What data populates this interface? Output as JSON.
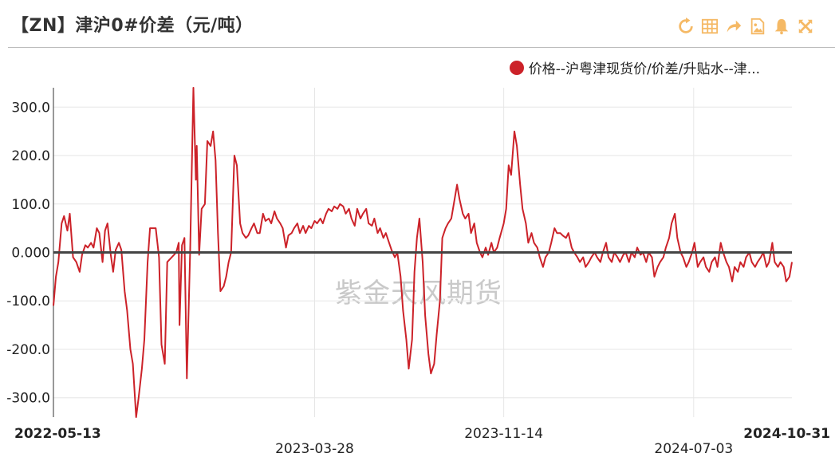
{
  "header": {
    "title": "【ZN】津沪0#价差（元/吨）"
  },
  "toolbar": [
    {
      "icon": "refresh-icon"
    },
    {
      "icon": "table-icon"
    },
    {
      "icon": "share-icon"
    },
    {
      "icon": "image-icon"
    },
    {
      "icon": "bell-icon"
    },
    {
      "icon": "fullscreen-icon"
    }
  ],
  "colors": {
    "series": "#cc2229",
    "toolbar": "#f5b965",
    "grid": "#e6e6e6",
    "zero": "#444444",
    "watermark": "#c9c9c9"
  },
  "watermark": "紫金天风期货",
  "chart_data": {
    "type": "line",
    "title": "【ZN】津沪0#价差（元/吨）",
    "ylim": [
      -340,
      340
    ],
    "yticks": [
      -300,
      -200,
      -100,
      0,
      100,
      200,
      300
    ],
    "ytick_labels": [
      "-300.0",
      "-200.0",
      "-100.0",
      "0.000",
      "100.0",
      "200.0",
      "300.0"
    ],
    "xlim": [
      "2022-05-13",
      "2024-10-31"
    ],
    "xticks": [
      {
        "date": "2022-05-13",
        "label": "2022-05-13",
        "row": 1,
        "bold": true
      },
      {
        "date": "2023-03-28",
        "label": "2023-03-28",
        "row": 2,
        "bold": false
      },
      {
        "date": "2023-11-14",
        "label": "2023-11-14",
        "row": 1,
        "bold": false
      },
      {
        "date": "2024-07-03",
        "label": "2024-07-03",
        "row": 2,
        "bold": false
      },
      {
        "date": "2024-10-31",
        "label": "2024-10-31",
        "row": 1,
        "bold": true
      }
    ],
    "grid": true,
    "legend": "top-right",
    "series": [
      {
        "name": "价格--沪粤津现货价/价差/升贴水--津...",
        "points": [
          [
            "2022-05-13",
            -110
          ],
          [
            "2022-05-16",
            -50
          ],
          [
            "2022-05-19",
            -20
          ],
          [
            "2022-05-23",
            60
          ],
          [
            "2022-05-26",
            75
          ],
          [
            "2022-05-30",
            45
          ],
          [
            "2022-06-02",
            80
          ],
          [
            "2022-06-06",
            -10
          ],
          [
            "2022-06-10",
            -20
          ],
          [
            "2022-06-14",
            -40
          ],
          [
            "2022-06-17",
            -5
          ],
          [
            "2022-06-21",
            15
          ],
          [
            "2022-06-24",
            10
          ],
          [
            "2022-06-28",
            20
          ],
          [
            "2022-07-01",
            10
          ],
          [
            "2022-07-05",
            50
          ],
          [
            "2022-07-08",
            40
          ],
          [
            "2022-07-12",
            -20
          ],
          [
            "2022-07-15",
            45
          ],
          [
            "2022-07-18",
            60
          ],
          [
            "2022-07-22",
            -5
          ],
          [
            "2022-07-25",
            -40
          ],
          [
            "2022-07-28",
            5
          ],
          [
            "2022-08-01",
            20
          ],
          [
            "2022-08-04",
            5
          ],
          [
            "2022-08-08",
            -80
          ],
          [
            "2022-08-11",
            -120
          ],
          [
            "2022-08-15",
            -200
          ],
          [
            "2022-08-18",
            -230
          ],
          [
            "2022-08-22",
            -340
          ],
          [
            "2022-08-25",
            -300
          ],
          [
            "2022-08-29",
            -240
          ],
          [
            "2022-09-01",
            -180
          ],
          [
            "2022-09-05",
            -20
          ],
          [
            "2022-09-08",
            50
          ],
          [
            "2022-09-15",
            50
          ],
          [
            "2022-09-19",
            -10
          ],
          [
            "2022-09-22",
            -190
          ],
          [
            "2022-09-26",
            -230
          ],
          [
            "2022-09-29",
            -20
          ],
          [
            "2022-10-10",
            0
          ],
          [
            "2022-10-13",
            20
          ],
          [
            "2022-10-14",
            -150
          ],
          [
            "2022-10-17",
            15
          ],
          [
            "2022-10-20",
            30
          ],
          [
            "2022-10-23",
            -260
          ],
          [
            "2022-10-27",
            0
          ],
          [
            "2022-10-31",
            340
          ],
          [
            "2022-11-03",
            150
          ],
          [
            "2022-11-04",
            220
          ],
          [
            "2022-11-07",
            -5
          ],
          [
            "2022-11-10",
            90
          ],
          [
            "2022-11-14",
            100
          ],
          [
            "2022-11-17",
            230
          ],
          [
            "2022-11-21",
            220
          ],
          [
            "2022-11-24",
            250
          ],
          [
            "2022-11-27",
            190
          ],
          [
            "2022-11-30",
            40
          ],
          [
            "2022-12-03",
            -80
          ],
          [
            "2022-12-07",
            -70
          ],
          [
            "2022-12-10",
            -50
          ],
          [
            "2022-12-13",
            -20
          ],
          [
            "2022-12-16",
            0
          ],
          [
            "2022-12-20",
            200
          ],
          [
            "2022-12-23",
            180
          ],
          [
            "2022-12-27",
            60
          ],
          [
            "2022-12-30",
            40
          ],
          [
            "2023-01-03",
            30
          ],
          [
            "2023-01-06",
            35
          ],
          [
            "2023-01-10",
            50
          ],
          [
            "2023-01-13",
            60
          ],
          [
            "2023-01-17",
            40
          ],
          [
            "2023-01-20",
            40
          ],
          [
            "2023-01-24",
            80
          ],
          [
            "2023-01-27",
            65
          ],
          [
            "2023-01-31",
            70
          ],
          [
            "2023-02-03",
            60
          ],
          [
            "2023-02-07",
            85
          ],
          [
            "2023-02-10",
            70
          ],
          [
            "2023-02-14",
            60
          ],
          [
            "2023-02-17",
            50
          ],
          [
            "2023-02-21",
            10
          ],
          [
            "2023-02-24",
            35
          ],
          [
            "2023-02-28",
            40
          ],
          [
            "2023-03-03",
            50
          ],
          [
            "2023-03-07",
            60
          ],
          [
            "2023-03-10",
            40
          ],
          [
            "2023-03-14",
            55
          ],
          [
            "2023-03-17",
            40
          ],
          [
            "2023-03-21",
            55
          ],
          [
            "2023-03-24",
            50
          ],
          [
            "2023-03-28",
            65
          ],
          [
            "2023-03-31",
            60
          ],
          [
            "2023-04-04",
            70
          ],
          [
            "2023-04-07",
            60
          ],
          [
            "2023-04-11",
            80
          ],
          [
            "2023-04-14",
            90
          ],
          [
            "2023-04-18",
            85
          ],
          [
            "2023-04-21",
            95
          ],
          [
            "2023-04-25",
            90
          ],
          [
            "2023-04-28",
            100
          ],
          [
            "2023-05-02",
            95
          ],
          [
            "2023-05-05",
            80
          ],
          [
            "2023-05-09",
            90
          ],
          [
            "2023-05-12",
            70
          ],
          [
            "2023-05-16",
            55
          ],
          [
            "2023-05-19",
            90
          ],
          [
            "2023-05-23",
            70
          ],
          [
            "2023-05-26",
            80
          ],
          [
            "2023-05-30",
            90
          ],
          [
            "2023-06-02",
            60
          ],
          [
            "2023-06-06",
            55
          ],
          [
            "2023-06-09",
            70
          ],
          [
            "2023-06-13",
            40
          ],
          [
            "2023-06-16",
            50
          ],
          [
            "2023-06-20",
            30
          ],
          [
            "2023-06-23",
            40
          ],
          [
            "2023-06-27",
            20
          ],
          [
            "2023-06-30",
            5
          ],
          [
            "2023-07-04",
            -10
          ],
          [
            "2023-07-07",
            0
          ],
          [
            "2023-07-11",
            -50
          ],
          [
            "2023-07-14",
            -120
          ],
          [
            "2023-07-18",
            -180
          ],
          [
            "2023-07-21",
            -240
          ],
          [
            "2023-07-25",
            -180
          ],
          [
            "2023-07-28",
            -40
          ],
          [
            "2023-07-31",
            30
          ],
          [
            "2023-08-03",
            70
          ],
          [
            "2023-08-07",
            -20
          ],
          [
            "2023-08-10",
            -130
          ],
          [
            "2023-08-14",
            -210
          ],
          [
            "2023-08-17",
            -250
          ],
          [
            "2023-08-21",
            -230
          ],
          [
            "2023-08-24",
            -170
          ],
          [
            "2023-08-28",
            -100
          ],
          [
            "2023-08-31",
            30
          ],
          [
            "2023-09-04",
            50
          ],
          [
            "2023-09-07",
            60
          ],
          [
            "2023-09-11",
            70
          ],
          [
            "2023-09-14",
            100
          ],
          [
            "2023-09-18",
            140
          ],
          [
            "2023-09-21",
            110
          ],
          [
            "2023-09-25",
            80
          ],
          [
            "2023-09-28",
            70
          ],
          [
            "2023-10-02",
            80
          ],
          [
            "2023-10-05",
            40
          ],
          [
            "2023-10-09",
            60
          ],
          [
            "2023-10-12",
            20
          ],
          [
            "2023-10-16",
            0
          ],
          [
            "2023-10-19",
            -10
          ],
          [
            "2023-10-23",
            10
          ],
          [
            "2023-10-26",
            -5
          ],
          [
            "2023-10-30",
            20
          ],
          [
            "2023-11-02",
            0
          ],
          [
            "2023-11-06",
            10
          ],
          [
            "2023-11-09",
            30
          ],
          [
            "2023-11-14",
            60
          ],
          [
            "2023-11-17",
            90
          ],
          [
            "2023-11-20",
            180
          ],
          [
            "2023-11-23",
            160
          ],
          [
            "2023-11-27",
            250
          ],
          [
            "2023-11-30",
            220
          ],
          [
            "2023-12-04",
            140
          ],
          [
            "2023-12-07",
            90
          ],
          [
            "2023-12-11",
            60
          ],
          [
            "2023-12-14",
            20
          ],
          [
            "2023-12-18",
            40
          ],
          [
            "2023-12-21",
            20
          ],
          [
            "2023-12-25",
            10
          ],
          [
            "2023-12-28",
            -10
          ],
          [
            "2024-01-01",
            -30
          ],
          [
            "2024-01-04",
            -10
          ],
          [
            "2024-01-08",
            0
          ],
          [
            "2024-01-11",
            20
          ],
          [
            "2024-01-15",
            50
          ],
          [
            "2024-01-18",
            40
          ],
          [
            "2024-01-22",
            40
          ],
          [
            "2024-01-25",
            35
          ],
          [
            "2024-01-29",
            30
          ],
          [
            "2024-02-01",
            40
          ],
          [
            "2024-02-05",
            10
          ],
          [
            "2024-02-08",
            0
          ],
          [
            "2024-02-12",
            -10
          ],
          [
            "2024-02-15",
            -20
          ],
          [
            "2024-02-19",
            -10
          ],
          [
            "2024-02-22",
            -30
          ],
          [
            "2024-02-26",
            -20
          ],
          [
            "2024-02-29",
            -10
          ],
          [
            "2024-03-04",
            0
          ],
          [
            "2024-03-07",
            -10
          ],
          [
            "2024-03-11",
            -20
          ],
          [
            "2024-03-14",
            0
          ],
          [
            "2024-03-18",
            20
          ],
          [
            "2024-03-21",
            -10
          ],
          [
            "2024-03-25",
            -20
          ],
          [
            "2024-03-28",
            0
          ],
          [
            "2024-04-01",
            -10
          ],
          [
            "2024-04-04",
            -20
          ],
          [
            "2024-04-08",
            -5
          ],
          [
            "2024-04-11",
            0
          ],
          [
            "2024-04-15",
            -20
          ],
          [
            "2024-04-18",
            0
          ],
          [
            "2024-04-22",
            -10
          ],
          [
            "2024-04-25",
            10
          ],
          [
            "2024-04-29",
            -5
          ],
          [
            "2024-05-02",
            0
          ],
          [
            "2024-05-06",
            -20
          ],
          [
            "2024-05-09",
            0
          ],
          [
            "2024-05-13",
            -10
          ],
          [
            "2024-05-16",
            -50
          ],
          [
            "2024-05-20",
            -30
          ],
          [
            "2024-05-23",
            -20
          ],
          [
            "2024-05-27",
            -10
          ],
          [
            "2024-05-30",
            10
          ],
          [
            "2024-06-03",
            30
          ],
          [
            "2024-06-06",
            60
          ],
          [
            "2024-06-10",
            80
          ],
          [
            "2024-06-13",
            30
          ],
          [
            "2024-06-17",
            0
          ],
          [
            "2024-06-20",
            -10
          ],
          [
            "2024-06-24",
            -30
          ],
          [
            "2024-06-27",
            -20
          ],
          [
            "2024-07-01",
            0
          ],
          [
            "2024-07-04",
            20
          ],
          [
            "2024-07-08",
            -30
          ],
          [
            "2024-07-11",
            -20
          ],
          [
            "2024-07-15",
            -10
          ],
          [
            "2024-07-18",
            -30
          ],
          [
            "2024-07-22",
            -40
          ],
          [
            "2024-07-25",
            -20
          ],
          [
            "2024-07-29",
            -10
          ],
          [
            "2024-08-01",
            -30
          ],
          [
            "2024-08-05",
            20
          ],
          [
            "2024-08-08",
            0
          ],
          [
            "2024-08-12",
            -20
          ],
          [
            "2024-08-15",
            -30
          ],
          [
            "2024-08-19",
            -60
          ],
          [
            "2024-08-22",
            -30
          ],
          [
            "2024-08-26",
            -40
          ],
          [
            "2024-08-29",
            -20
          ],
          [
            "2024-09-02",
            -30
          ],
          [
            "2024-09-05",
            -10
          ],
          [
            "2024-09-09",
            0
          ],
          [
            "2024-09-12",
            -20
          ],
          [
            "2024-09-16",
            -30
          ],
          [
            "2024-09-19",
            -20
          ],
          [
            "2024-09-23",
            -10
          ],
          [
            "2024-09-26",
            0
          ],
          [
            "2024-09-30",
            -30
          ],
          [
            "2024-10-03",
            -20
          ],
          [
            "2024-10-07",
            20
          ],
          [
            "2024-10-10",
            -20
          ],
          [
            "2024-10-14",
            -30
          ],
          [
            "2024-10-17",
            -20
          ],
          [
            "2024-10-21",
            -30
          ],
          [
            "2024-10-24",
            -60
          ],
          [
            "2024-10-28",
            -50
          ],
          [
            "2024-10-31",
            -20
          ]
        ]
      }
    ]
  }
}
